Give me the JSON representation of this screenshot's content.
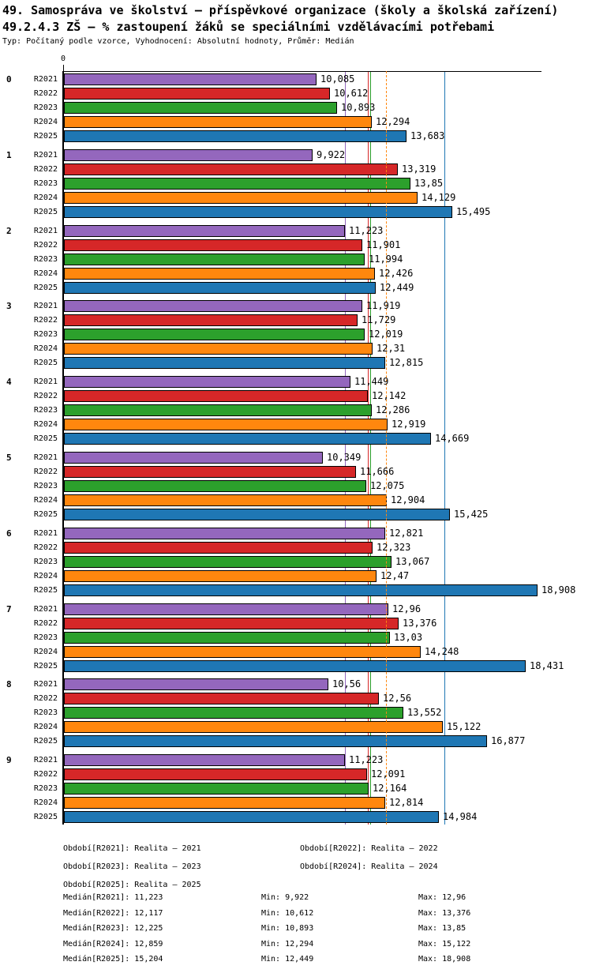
{
  "header": {
    "title_line1": "49. Samospráva ve školství – příspěvkové organizace (školy a školská zařízení)",
    "title_line2": "49.2.4.3 ZŠ – % zastoupení žáků se speciálními vzdělávacími potřebami",
    "meta_line": "Typ: Počítaný podle vzorce, Vyhodnocení: Absolutní hodnoty, Průměr: Medián"
  },
  "chart_data": {
    "type": "bar",
    "orientation": "horizontal",
    "axis": {
      "zero_label": "0",
      "xlim": [
        0,
        19.12
      ],
      "grid": false
    },
    "series": [
      {
        "name": "R2021",
        "color": "#9467bd",
        "median": 11.223,
        "median_label": "11,223",
        "line_style": "solid"
      },
      {
        "name": "R2022",
        "color": "#d62728",
        "median": 12.117,
        "median_label": "12,117",
        "line_style": "solid"
      },
      {
        "name": "R2023",
        "color": "#2ca02c",
        "median": 12.225,
        "median_label": "12,225",
        "line_style": "solid"
      },
      {
        "name": "R2024",
        "color": "#ff870e",
        "median": 12.859,
        "median_label": "12,859",
        "line_style": "dashed"
      },
      {
        "name": "R2025",
        "color": "#1f77b4",
        "median": 15.204,
        "median_label": "15,204",
        "line_style": "solid"
      }
    ],
    "groups": [
      {
        "label": "0",
        "values": [
          10.085,
          10.612,
          10.893,
          12.294,
          13.683
        ],
        "value_labels": [
          "10,085",
          "10,612",
          "10,893",
          "12,294",
          "13,683"
        ]
      },
      {
        "label": "1",
        "values": [
          9.922,
          13.319,
          13.85,
          14.129,
          15.495
        ],
        "value_labels": [
          "9,922",
          "13,319",
          "13,85",
          "14,129",
          "15,495"
        ]
      },
      {
        "label": "2",
        "values": [
          11.223,
          11.901,
          11.994,
          12.426,
          12.449
        ],
        "value_labels": [
          "11,223",
          "11,901",
          "11,994",
          "12,426",
          "12,449"
        ]
      },
      {
        "label": "3",
        "values": [
          11.919,
          11.729,
          12.019,
          12.31,
          12.815
        ],
        "value_labels": [
          "11,919",
          "11,729",
          "12,019",
          "12,31",
          "12,815"
        ]
      },
      {
        "label": "4",
        "values": [
          11.449,
          12.142,
          12.286,
          12.919,
          14.669
        ],
        "value_labels": [
          "11,449",
          "12,142",
          "12,286",
          "12,919",
          "14,669"
        ]
      },
      {
        "label": "5",
        "values": [
          10.349,
          11.666,
          12.075,
          12.904,
          15.425
        ],
        "value_labels": [
          "10,349",
          "11,666",
          "12,075",
          "12,904",
          "15,425"
        ]
      },
      {
        "label": "6",
        "values": [
          12.821,
          12.323,
          13.067,
          12.47,
          18.908
        ],
        "value_labels": [
          "12,821",
          "12,323",
          "13,067",
          "12,47",
          "18,908"
        ]
      },
      {
        "label": "7",
        "values": [
          12.96,
          13.376,
          13.03,
          14.248,
          18.431
        ],
        "value_labels": [
          "12,96",
          "13,376",
          "13,03",
          "14,248",
          "18,431"
        ]
      },
      {
        "label": "8",
        "values": [
          10.56,
          12.56,
          13.552,
          15.122,
          16.877
        ],
        "value_labels": [
          "10,56",
          "12,56",
          "13,552",
          "15,122",
          "16,877"
        ]
      },
      {
        "label": "9",
        "values": [
          11.223,
          12.091,
          12.164,
          12.814,
          14.984
        ],
        "value_labels": [
          "11,223",
          "12,091",
          "12,164",
          "12,814",
          "14,984"
        ]
      }
    ],
    "stats": [
      {
        "series": "R2021",
        "median": 11.223,
        "min": 9.922,
        "max": 12.96
      },
      {
        "series": "R2022",
        "median": 12.117,
        "min": 10.612,
        "max": 13.376
      },
      {
        "series": "R2023",
        "median": 12.225,
        "min": 10.893,
        "max": 13.85
      },
      {
        "series": "R2024",
        "median": 12.859,
        "min": 12.294,
        "max": 15.122
      },
      {
        "series": "R2025",
        "median": 15.204,
        "min": 12.449,
        "max": 18.908
      }
    ]
  },
  "footer": {
    "legend_rows": [
      [
        "Období[R2021]: Realita – 2021",
        "Období[R2022]: Realita – 2022"
      ],
      [
        "Období[R2023]: Realita – 2023",
        "Období[R2024]: Realita – 2024"
      ],
      [
        "Období[R2025]: Realita – 2025"
      ]
    ],
    "stats_rows": [
      {
        "median": "Medián[R2021]: 11,223",
        "min": "Min: 9,922",
        "max": "Max: 12,96"
      },
      {
        "median": "Medián[R2022]: 12,117",
        "min": "Min: 10,612",
        "max": "Max: 13,376"
      },
      {
        "median": "Medián[R2023]: 12,225",
        "min": "Min: 10,893",
        "max": "Max: 13,85"
      },
      {
        "median": "Medián[R2024]: 12,859",
        "min": "Min: 12,294",
        "max": "Max: 15,122"
      },
      {
        "median": "Medián[R2025]: 15,204",
        "min": "Min: 12,449",
        "max": "Max: 18,908"
      }
    ]
  }
}
